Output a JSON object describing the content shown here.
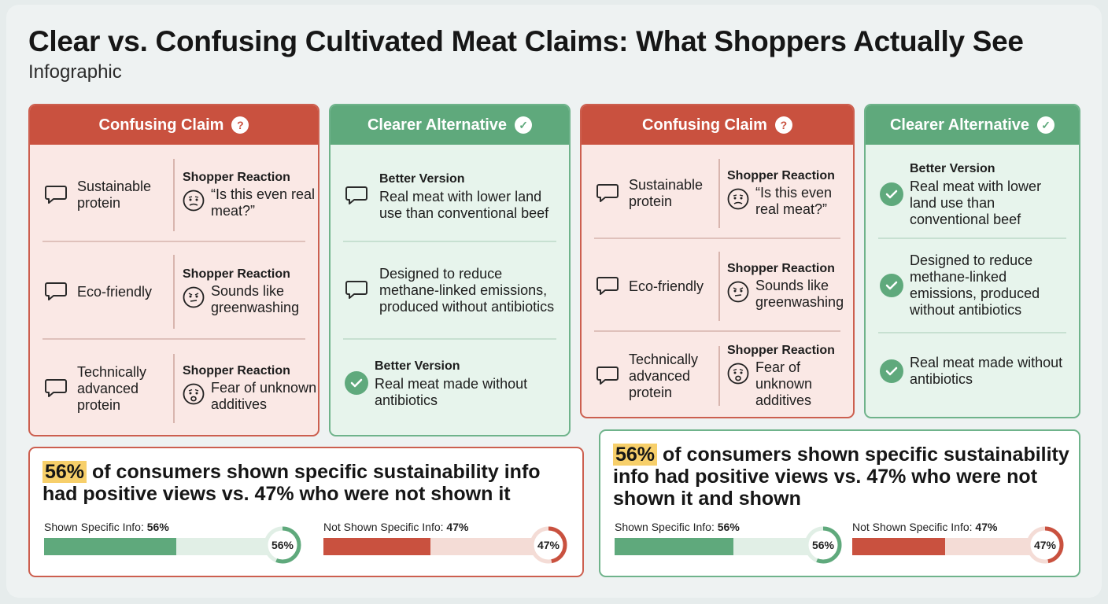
{
  "header": {
    "title": "Clear vs. Confusing Cultivated Meat Claims: What Shoppers Actually See",
    "subtitle": "Infographic"
  },
  "panels": {
    "confusing_header": "Confusing Claim",
    "clearer_header": "Clearer Alternative",
    "question_mark": "?",
    "reaction_title": "Shopper Reaction",
    "better_title": "Better Version"
  },
  "confusing_left": [
    {
      "claim": "Sustainable protein",
      "reaction": "“Is this even real meat?”"
    },
    {
      "claim": "Eco-friendly",
      "reaction": "Sounds like greenwashing"
    },
    {
      "claim": "Technically advanced protein",
      "reaction": "Fear of unknown additives"
    }
  ],
  "clearer_left": [
    {
      "title": "Better Version",
      "text": "Real meat with lower land use than conventional beef",
      "icon": "chat-bubble-icon"
    },
    {
      "title": "",
      "text": "Designed to reduce methane-linked emissions, produced without antibiotics",
      "icon": "chat-bubble-icon"
    },
    {
      "title": "Better Version",
      "text": "Real meat made without antibiotics",
      "icon": "check-circle-icon"
    }
  ],
  "confusing_right": [
    {
      "claim": "Sustainable protein",
      "reaction": "“Is this even real meat?”"
    },
    {
      "claim": "Eco-friendly",
      "reaction": "Sounds like greenwashing"
    },
    {
      "claim": "Technically advanced protein",
      "reaction": "Fear of unknown additives"
    }
  ],
  "clearer_right": [
    {
      "title": "Better Version",
      "text": "Real meat with lower land use than conventional beef"
    },
    {
      "title": "",
      "text": "Designed to reduce methane-linked emissions, produced without antibiotics"
    },
    {
      "title": "",
      "text": "Real meat made without antibiotics"
    }
  ],
  "stats_left": {
    "highlight": "56%",
    "text": " of consumers shown specific sustainability info had positive views vs. 47% who were not shown it",
    "shown_label": "Shown Specific Info: ",
    "shown_value": "56%",
    "shown_pct": 56,
    "not_shown_label": "Not Shown Specific Info: ",
    "not_shown_value": "47%",
    "not_shown_pct": 47
  },
  "stats_right": {
    "highlight": "56%",
    "text": " of consumers shown specific sustainability info had positive views vs. 47% who were not shown it and shown",
    "shown_label": "Shown Specific Info: ",
    "shown_value": "56%",
    "shown_pct": 56,
    "not_shown_label": "Not Shown Specific Info: ",
    "not_shown_value": "47%",
    "not_shown_pct": 47
  },
  "colors": {
    "red": "#c9513f",
    "green": "#5fa97c",
    "red_track": "#f4dcd6",
    "green_track": "#e1efe6",
    "highlight": "#f7cf6a"
  }
}
